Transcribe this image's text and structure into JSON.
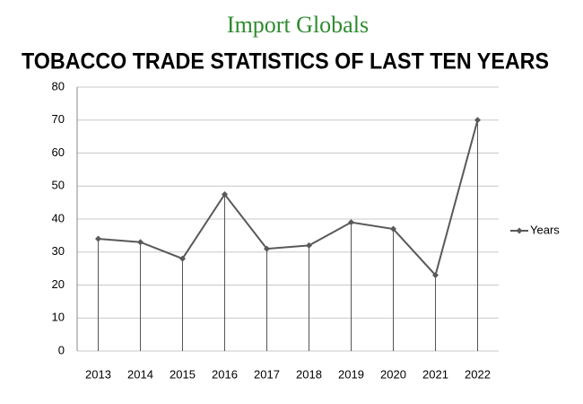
{
  "logo": "Import Globals",
  "chart_data": {
    "type": "line",
    "title": "TOBACCO TRADE STATISTICS OF LAST TEN YEARS",
    "categories": [
      "2013",
      "2014",
      "2015",
      "2016",
      "2017",
      "2018",
      "2019",
      "2020",
      "2021",
      "2022"
    ],
    "series": [
      {
        "name": "Years",
        "color": "#595959",
        "values": [
          34,
          33,
          28,
          47.5,
          31,
          32,
          39,
          37,
          23,
          70
        ]
      }
    ],
    "ylim": [
      0,
      80
    ],
    "yticks": [
      0,
      10,
      20,
      30,
      40,
      50,
      60,
      70,
      80
    ],
    "grid": true,
    "drop_lines": true,
    "legend": "right"
  }
}
